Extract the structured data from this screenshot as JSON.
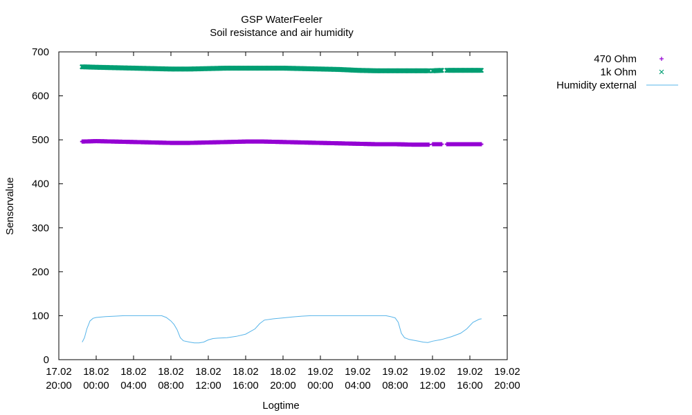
{
  "chart_data": {
    "type": "scatter",
    "title": "GSP WaterFeeler",
    "subtitle": "Soil resistance and air humidity",
    "xlabel": "Logtime",
    "ylabel": "Sensorvalue",
    "ylim": [
      0,
      700
    ],
    "yticks": [
      0,
      100,
      200,
      300,
      400,
      500,
      600,
      700
    ],
    "xlim": [
      "17.02 20:00",
      "19.02 20:00"
    ],
    "xticks": [
      {
        "date": "17.02",
        "time": "20:00"
      },
      {
        "date": "18.02",
        "time": "00:00"
      },
      {
        "date": "18.02",
        "time": "04:00"
      },
      {
        "date": "18.02",
        "time": "08:00"
      },
      {
        "date": "18.02",
        "time": "12:00"
      },
      {
        "date": "18.02",
        "time": "16:00"
      },
      {
        "date": "18.02",
        "time": "20:00"
      },
      {
        "date": "19.02",
        "time": "00:00"
      },
      {
        "date": "19.02",
        "time": "04:00"
      },
      {
        "date": "19.02",
        "time": "08:00"
      },
      {
        "date": "19.02",
        "time": "12:00"
      },
      {
        "date": "19.02",
        "time": "16:00"
      },
      {
        "date": "19.02",
        "time": "20:00"
      }
    ],
    "grid": false,
    "legend_position": "outside top-right",
    "series": [
      {
        "name": "470 Ohm",
        "style": "points",
        "marker": "plus",
        "color": "#9400d3",
        "points": [
          [
            "17.02 22:30",
            496
          ],
          [
            "18.02 00:00",
            497
          ],
          [
            "18.02 02:00",
            496
          ],
          [
            "18.02 04:00",
            495
          ],
          [
            "18.02 06:00",
            494
          ],
          [
            "18.02 08:00",
            493
          ],
          [
            "18.02 10:00",
            493
          ],
          [
            "18.02 12:00",
            494
          ],
          [
            "18.02 14:00",
            495
          ],
          [
            "18.02 16:00",
            496
          ],
          [
            "18.02 18:00",
            496
          ],
          [
            "18.02 20:00",
            495
          ],
          [
            "18.02 22:00",
            494
          ],
          [
            "19.02 00:00",
            493
          ],
          [
            "19.02 02:00",
            492
          ],
          [
            "19.02 04:00",
            491
          ],
          [
            "19.02 06:00",
            490
          ],
          [
            "19.02 08:00",
            490
          ],
          [
            "19.02 10:00",
            489
          ],
          [
            "19.02 11:40",
            489
          ],
          [
            "19.02 12:00",
            490
          ],
          [
            "19.02 13:00",
            490
          ],
          [
            "19.02 13:30",
            490
          ],
          [
            "19.02 16:00",
            490
          ],
          [
            "19.02 17:15",
            490
          ]
        ],
        "gaps_after": [
          "19.02 11:40",
          "19.02 13:00"
        ]
      },
      {
        "name": "1k Ohm",
        "style": "points",
        "marker": "cross",
        "color": "#009e73",
        "points": [
          [
            "17.02 22:30",
            666
          ],
          [
            "18.02 00:00",
            665
          ],
          [
            "18.02 02:00",
            664
          ],
          [
            "18.02 04:00",
            663
          ],
          [
            "18.02 06:00",
            662
          ],
          [
            "18.02 08:00",
            661
          ],
          [
            "18.02 10:00",
            661
          ],
          [
            "18.02 12:00",
            662
          ],
          [
            "18.02 14:00",
            663
          ],
          [
            "18.02 16:00",
            663
          ],
          [
            "18.02 18:00",
            663
          ],
          [
            "18.02 20:00",
            663
          ],
          [
            "18.02 22:00",
            662
          ],
          [
            "19.02 00:00",
            661
          ],
          [
            "19.02 02:00",
            660
          ],
          [
            "19.02 04:00",
            658
          ],
          [
            "19.02 06:00",
            657
          ],
          [
            "19.02 08:00",
            657
          ],
          [
            "19.02 10:00",
            657
          ],
          [
            "19.02 11:40",
            657
          ],
          [
            "19.02 12:00",
            657
          ],
          [
            "19.02 13:00",
            658
          ],
          [
            "19.02 13:30",
            658
          ],
          [
            "19.02 16:00",
            658
          ],
          [
            "19.02 17:15",
            658
          ]
        ],
        "gaps_after": [
          "19.02 11:40",
          "19.02 13:00"
        ]
      },
      {
        "name": "Humidity external",
        "style": "line",
        "color": "#56b4e9",
        "points": [
          [
            "17.02 22:30",
            40
          ],
          [
            "17.02 22:45",
            50
          ],
          [
            "17.02 23:00",
            70
          ],
          [
            "17.02 23:20",
            88
          ],
          [
            "17.02 23:40",
            94
          ],
          [
            "18.02 00:00",
            96
          ],
          [
            "18.02 01:00",
            98
          ],
          [
            "18.02 02:00",
            99
          ],
          [
            "18.02 03:00",
            100
          ],
          [
            "18.02 04:00",
            100
          ],
          [
            "18.02 05:00",
            100
          ],
          [
            "18.02 06:00",
            100
          ],
          [
            "18.02 07:00",
            100
          ],
          [
            "18.02 07:30",
            96
          ],
          [
            "18.02 08:00",
            88
          ],
          [
            "18.02 08:20",
            80
          ],
          [
            "18.02 08:40",
            68
          ],
          [
            "18.02 09:00",
            50
          ],
          [
            "18.02 09:20",
            43
          ],
          [
            "18.02 10:00",
            40
          ],
          [
            "18.02 10:30",
            38
          ],
          [
            "18.02 11:00",
            38
          ],
          [
            "18.02 11:30",
            40
          ],
          [
            "18.02 12:00",
            45
          ],
          [
            "18.02 12:30",
            48
          ],
          [
            "18.02 13:00",
            49
          ],
          [
            "18.02 14:00",
            50
          ],
          [
            "18.02 15:00",
            53
          ],
          [
            "18.02 16:00",
            58
          ],
          [
            "18.02 17:00",
            70
          ],
          [
            "18.02 17:30",
            82
          ],
          [
            "18.02 18:00",
            90
          ],
          [
            "18.02 19:00",
            93
          ],
          [
            "18.02 20:00",
            95
          ],
          [
            "18.02 21:00",
            97
          ],
          [
            "18.02 22:00",
            99
          ],
          [
            "18.02 23:00",
            100
          ],
          [
            "19.02 00:00",
            100
          ],
          [
            "19.02 02:00",
            100
          ],
          [
            "19.02 04:00",
            100
          ],
          [
            "19.02 06:00",
            100
          ],
          [
            "19.02 07:00",
            100
          ],
          [
            "19.02 07:30",
            98
          ],
          [
            "19.02 08:00",
            95
          ],
          [
            "19.02 08:20",
            85
          ],
          [
            "19.02 08:40",
            60
          ],
          [
            "19.02 09:00",
            50
          ],
          [
            "19.02 09:30",
            46
          ],
          [
            "19.02 10:00",
            44
          ],
          [
            "19.02 10:30",
            42
          ],
          [
            "19.02 11:00",
            40
          ],
          [
            "19.02 11:30",
            39
          ],
          [
            "19.02 12:00",
            42
          ],
          [
            "19.02 13:00",
            46
          ],
          [
            "19.02 14:00",
            52
          ],
          [
            "19.02 15:00",
            60
          ],
          [
            "19.02 15:40",
            70
          ],
          [
            "19.02 16:20",
            85
          ],
          [
            "19.02 17:00",
            92
          ],
          [
            "19.02 17:15",
            93
          ]
        ]
      }
    ]
  }
}
